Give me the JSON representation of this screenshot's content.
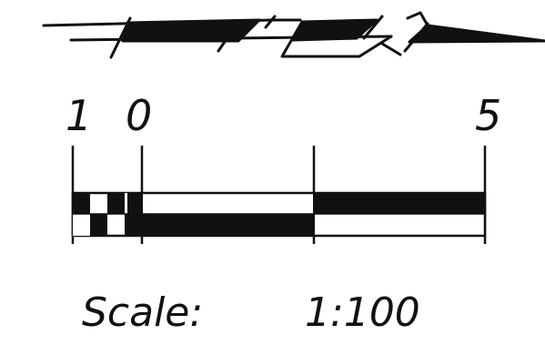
{
  "scale_bar": {
    "tick_labels": {
      "one": "1",
      "zero": "0",
      "five": "5"
    },
    "scale_word": "Scale:",
    "scale_ratio": "1:100"
  },
  "colors": {
    "ink": "#111111",
    "paper": "#ffffff"
  }
}
